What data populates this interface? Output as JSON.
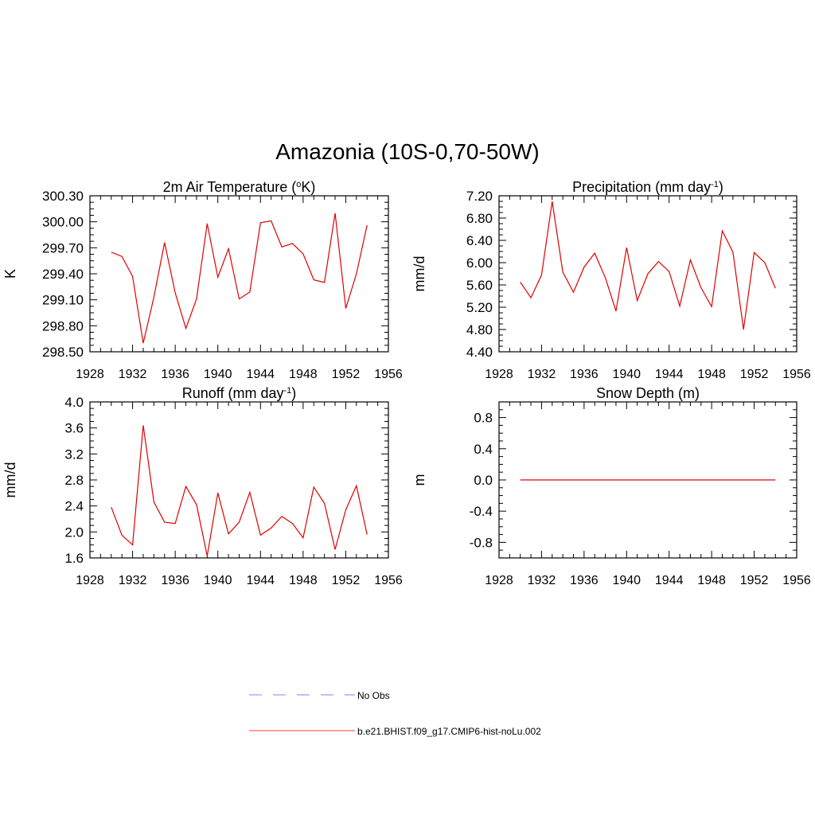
{
  "page": {
    "title": "Amazonia (10S-0,70-50W)"
  },
  "legend": {
    "entries": [
      {
        "label": "No Obs",
        "color": "#9999ff",
        "style": "dashed"
      },
      {
        "label": "b.e21.BHIST.f09_g17.CMIP6-hist-noLu.002",
        "color": "#ff6666",
        "style": "solid"
      }
    ]
  },
  "chart_data": [
    {
      "type": "line",
      "title": "2m Air Temperature (",
      "title_degree": "o",
      "title_unit": "K)",
      "xlabel": "",
      "ylabel": "K",
      "xlim": [
        1928,
        1956
      ],
      "ylim": [
        298.5,
        300.3
      ],
      "xticks": [
        1928,
        1932,
        1936,
        1940,
        1944,
        1948,
        1952,
        1956
      ],
      "yticks": [
        298.5,
        298.8,
        299.1,
        299.4,
        299.7,
        300.0,
        300.3
      ],
      "ytick_labels": [
        "298.50",
        "298.80",
        "299.10",
        "299.40",
        "299.70",
        "300.00",
        "300.30"
      ],
      "color": "#e00000",
      "series": [
        {
          "x": [
            1930,
            1931,
            1932,
            1933,
            1934,
            1935,
            1936,
            1937,
            1938,
            1939,
            1940,
            1941,
            1942,
            1943,
            1944,
            1945,
            1946,
            1947,
            1948,
            1949,
            1950,
            1951,
            1952,
            1953,
            1954
          ],
          "values": [
            299.65,
            299.6,
            299.37,
            298.6,
            299.13,
            299.76,
            299.18,
            298.77,
            299.11,
            299.98,
            299.36,
            299.69,
            299.11,
            299.19,
            299.99,
            300.01,
            299.71,
            299.75,
            299.63,
            299.33,
            299.3,
            300.1,
            299.0,
            299.4,
            299.96
          ]
        }
      ]
    },
    {
      "type": "line",
      "title": "Precipitation (mm day",
      "title_sup": "-1",
      "title_end": ")",
      "xlabel": "",
      "ylabel": "mm/d",
      "xlim": [
        1928,
        1956
      ],
      "ylim": [
        4.4,
        7.2
      ],
      "xticks": [
        1928,
        1932,
        1936,
        1940,
        1944,
        1948,
        1952,
        1956
      ],
      "yticks": [
        4.4,
        4.8,
        5.2,
        5.6,
        6.0,
        6.4,
        6.8,
        7.2
      ],
      "ytick_labels": [
        "4.40",
        "4.80",
        "5.20",
        "5.60",
        "6.00",
        "6.40",
        "6.80",
        "7.20"
      ],
      "color": "#e00000",
      "series": [
        {
          "x": [
            1930,
            1931,
            1932,
            1933,
            1934,
            1935,
            1936,
            1937,
            1938,
            1939,
            1940,
            1941,
            1942,
            1943,
            1944,
            1945,
            1946,
            1947,
            1948,
            1949,
            1950,
            1951,
            1952,
            1953,
            1954
          ],
          "values": [
            5.65,
            5.37,
            5.78,
            7.1,
            5.83,
            5.47,
            5.92,
            6.17,
            5.73,
            5.13,
            6.27,
            5.32,
            5.8,
            6.02,
            5.84,
            5.22,
            6.05,
            5.55,
            5.21,
            6.57,
            6.19,
            4.8,
            6.18,
            6.0,
            5.54
          ]
        }
      ]
    },
    {
      "type": "line",
      "title": "Runoff (mm day",
      "title_sup": "-1",
      "title_end": ")",
      "xlabel": "",
      "ylabel": "mm/d",
      "xlim": [
        1928,
        1956
      ],
      "ylim": [
        1.6,
        4.0
      ],
      "xticks": [
        1928,
        1932,
        1936,
        1940,
        1944,
        1948,
        1952,
        1956
      ],
      "yticks": [
        1.6,
        2.0,
        2.4,
        2.8,
        3.2,
        3.6,
        4.0
      ],
      "ytick_labels": [
        "1.6",
        "2.0",
        "2.4",
        "2.8",
        "3.2",
        "3.6",
        "4.0"
      ],
      "color": "#e00000",
      "series": [
        {
          "x": [
            1930,
            1931,
            1932,
            1933,
            1934,
            1935,
            1936,
            1937,
            1938,
            1939,
            1940,
            1941,
            1942,
            1943,
            1944,
            1945,
            1946,
            1947,
            1948,
            1949,
            1950,
            1951,
            1952,
            1953,
            1954
          ],
          "values": [
            2.38,
            1.95,
            1.8,
            3.64,
            2.46,
            2.15,
            2.13,
            2.7,
            2.42,
            1.63,
            2.6,
            1.97,
            2.15,
            2.61,
            1.95,
            2.06,
            2.24,
            2.13,
            1.91,
            2.69,
            2.44,
            1.73,
            2.34,
            2.71,
            1.96
          ]
        }
      ]
    },
    {
      "type": "line",
      "title": "Snow Depth (m)",
      "xlabel": "",
      "ylabel": "m",
      "xlim": [
        1928,
        1956
      ],
      "ylim": [
        -1.0,
        1.0
      ],
      "xticks": [
        1928,
        1932,
        1936,
        1940,
        1944,
        1948,
        1952,
        1956
      ],
      "yticks": [
        -0.8,
        -0.4,
        0.0,
        0.4,
        0.8
      ],
      "ytick_labels": [
        "-0.8",
        "-0.4",
        "0.0",
        "0.4",
        "0.8"
      ],
      "color": "#e00000",
      "series": [
        {
          "x": [
            1930,
            1954
          ],
          "values": [
            0.0,
            0.0
          ]
        }
      ]
    }
  ]
}
